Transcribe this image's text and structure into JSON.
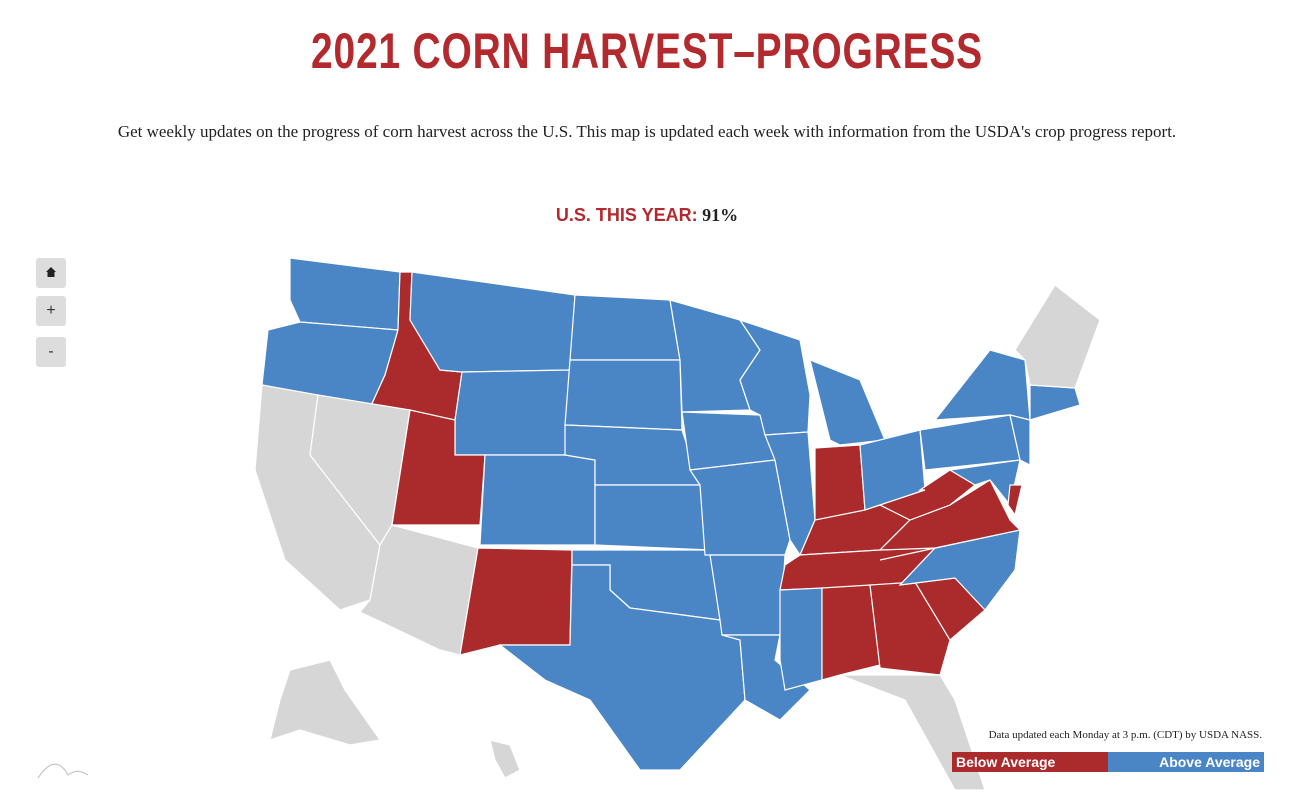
{
  "header": {
    "title": "2021 CORN HARVEST–PROGRESS",
    "description": "Get weekly updates on the progress of corn harvest across the U.S. This map is updated each week with information from the USDA's crop progress report."
  },
  "stat": {
    "label": "U.S. THIS YEAR:",
    "value": "91%"
  },
  "controls": [
    "+",
    "-"
  ],
  "map": {
    "note": "Data updated each Monday at 3 p.m. (CDT) by USDA NASS."
  },
  "legend": [
    {
      "label": "Below Average",
      "color": "#ab2a2c"
    },
    {
      "label": "Above Average",
      "color": "#4a85c5"
    }
  ]
}
